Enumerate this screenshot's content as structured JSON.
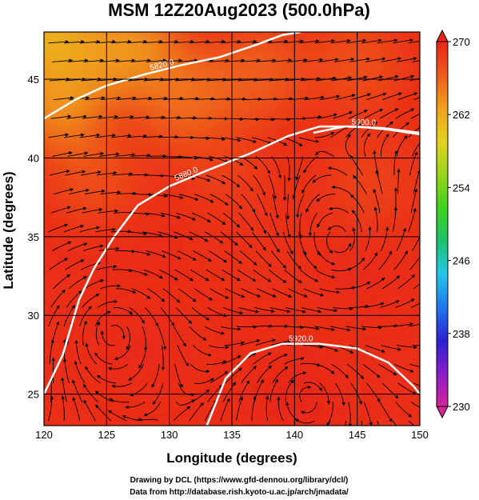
{
  "chart_data": {
    "type": "heatmap",
    "title": "MSM 12Z20Aug2023 (500.0hPa)",
    "xlabel": "Longitude (degrees)",
    "ylabel": "Latitude  (degrees)",
    "xlim": [
      120,
      150
    ],
    "ylim": [
      23,
      48
    ],
    "x_ticks": [
      120,
      125,
      130,
      135,
      140,
      145,
      150
    ],
    "y_ticks": [
      25,
      30,
      35,
      40,
      45
    ],
    "grid": true,
    "colorbar": {
      "min": 230,
      "max": 270,
      "ticks": [
        230,
        238,
        246,
        254,
        262,
        270
      ],
      "colors": [
        "#d6249a",
        "#8a1cc9",
        "#2a22d4",
        "#1f78f0",
        "#22c8e8",
        "#19c36a",
        "#3fd21b",
        "#9ad51a",
        "#e3d21c",
        "#f0a11c",
        "#f05a1a",
        "#e82416"
      ]
    },
    "contours": [
      {
        "label": "5880.0",
        "points": [
          [
            120,
            25.0
          ],
          [
            121.5,
            27.5
          ],
          [
            122.8,
            31.0
          ],
          [
            124.0,
            33.0
          ],
          [
            125.6,
            35.0
          ],
          [
            127.5,
            37.0
          ],
          [
            130.0,
            38.2
          ],
          [
            133.0,
            39.2
          ],
          [
            136.5,
            40.3
          ],
          [
            139.5,
            41.4
          ],
          [
            142.0,
            42.0
          ],
          [
            145.0,
            42.0
          ],
          [
            147.5,
            41.8
          ],
          [
            150,
            41.5
          ]
        ]
      },
      {
        "label": "5820.0",
        "points": [
          [
            120,
            42.5
          ],
          [
            122.5,
            43.7
          ],
          [
            125.0,
            44.6
          ],
          [
            128.0,
            45.3
          ],
          [
            131.0,
            45.9
          ],
          [
            134.0,
            46.4
          ],
          [
            137.0,
            47.2
          ],
          [
            139.0,
            47.8
          ],
          [
            140.5,
            48.0
          ]
        ]
      },
      {
        "label": "5900.0",
        "points": [
          [
            141.5,
            41.6
          ],
          [
            144.0,
            42.0
          ],
          [
            147.0,
            41.9
          ],
          [
            150,
            41.6
          ]
        ]
      },
      {
        "label": "5920.0",
        "points": [
          [
            133.0,
            23.0
          ],
          [
            134.5,
            26.0
          ],
          [
            136.5,
            27.6
          ],
          [
            139.0,
            28.2
          ],
          [
            142.0,
            28.2
          ],
          [
            145.0,
            27.9
          ],
          [
            147.5,
            27.0
          ],
          [
            149.5,
            25.5
          ],
          [
            150,
            25.0
          ]
        ]
      }
    ],
    "circulations": [
      {
        "lon": 125.5,
        "lat": 29.0,
        "sense": "anticyclonic"
      },
      {
        "lon": 143.5,
        "lat": 34.5,
        "sense": "cyclonic"
      },
      {
        "lon": 141.0,
        "lat": 25.0,
        "sense": "anticyclonic"
      }
    ],
    "temperature_field": [
      {
        "lon": 120.5,
        "lat": 47.5,
        "value": 260
      },
      {
        "lon": 124.0,
        "lat": 46.5,
        "value": 262
      },
      {
        "lon": 127.0,
        "lat": 47.0,
        "value": 263
      },
      {
        "lon": 121.0,
        "lat": 44.0,
        "value": 263
      },
      {
        "lon": 131.0,
        "lat": 44.0,
        "value": 265
      },
      {
        "lon": 137.0,
        "lat": 45.5,
        "value": 266
      },
      {
        "lon": 145.0,
        "lat": 46.0,
        "value": 267
      },
      {
        "lon": 124.0,
        "lat": 39.0,
        "value": 267
      },
      {
        "lon": 134.0,
        "lat": 40.0,
        "value": 268
      },
      {
        "lon": 146.0,
        "lat": 38.5,
        "value": 268
      },
      {
        "lon": 137.0,
        "lat": 35.0,
        "value": 269
      },
      {
        "lon": 145.0,
        "lat": 33.0,
        "value": 269.5
      },
      {
        "lon": 128.0,
        "lat": 28.0,
        "value": 269.5
      },
      {
        "lon": 140.0,
        "lat": 25.0,
        "value": 269.8
      }
    ]
  },
  "credits": {
    "line1": "Drawing by DCL (https://www.gfd-dennou.org/library/dcl/)",
    "line2": "Data from http://database.rish.kyoto-u.ac.jp/arch/jmadata/"
  }
}
